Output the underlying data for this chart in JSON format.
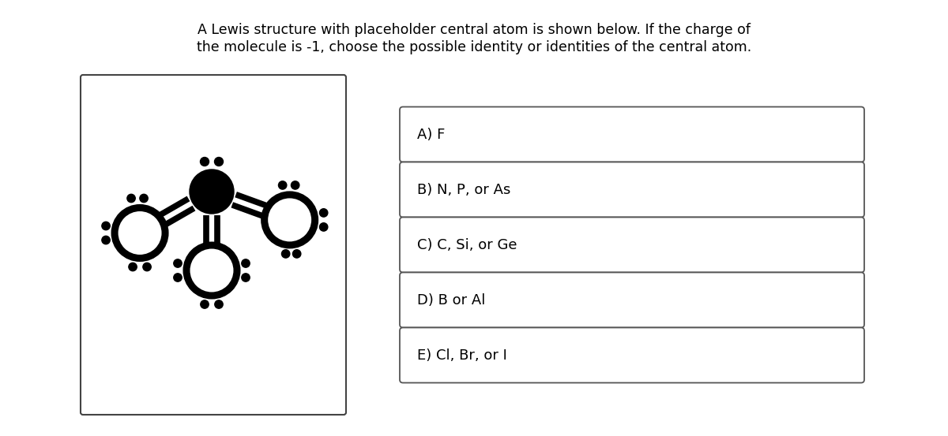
{
  "title_line1": "A Lewis structure with placeholder central atom is shown below. If the charge of",
  "title_line2": "the molecule is -1, choose the possible identity or identities of the central atom.",
  "title_fontsize": 12.5,
  "answer_options": [
    "A) F",
    "B) N, P, or As",
    "C) C, Si, or Ge",
    "D) B or Al",
    "E) Cl, Br, or I"
  ],
  "answer_fontsize": 13,
  "bg_color": "#ffffff",
  "fg_color": "#000000",
  "box_border_color": "#555555"
}
